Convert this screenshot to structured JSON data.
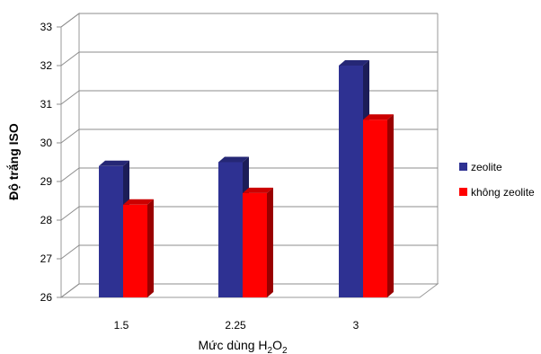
{
  "chart_data": {
    "type": "bar",
    "style": "3d-clustered-column",
    "categories": [
      "1.5",
      "2.25",
      "3"
    ],
    "series": [
      {
        "name": "zeolite",
        "color": "#2e3192",
        "values": [
          29.4,
          29.5,
          32.0
        ]
      },
      {
        "name": "không zeolite",
        "color": "#ff0000",
        "values": [
          28.4,
          28.7,
          30.6
        ]
      }
    ],
    "ylabel": "Độ trắng ISO",
    "xlabel_main": "Mức dùng H",
    "xlabel_sub1": "2",
    "xlabel_mid": "O",
    "xlabel_sub2": "2",
    "ylim": [
      26,
      33
    ],
    "yticks": [
      26,
      27,
      28,
      29,
      30,
      31,
      32,
      33
    ],
    "grid": true,
    "legend_position": "right"
  }
}
